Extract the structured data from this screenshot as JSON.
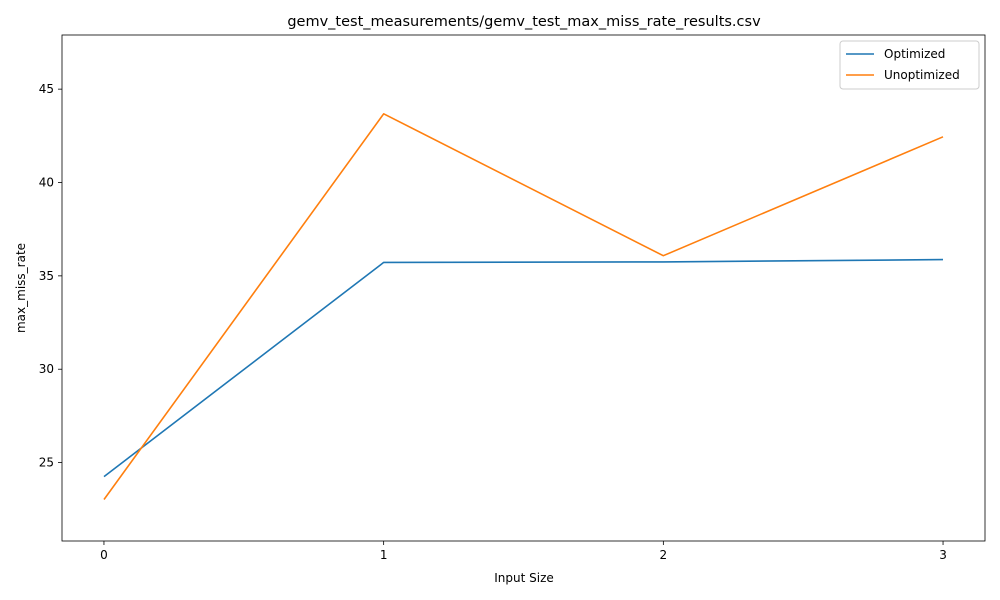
{
  "chart_data": {
    "type": "line",
    "title": "gemv_test_measurements/gemv_test_max_miss_rate_results.csv",
    "xlabel": "Input Size",
    "ylabel": "max_miss_rate",
    "x": [
      0,
      1,
      2,
      3
    ],
    "x_ticks": [
      "0",
      "1",
      "2",
      "3"
    ],
    "xlim": [
      -0.15,
      3.15
    ],
    "ylim": [
      20.8,
      47.9
    ],
    "y_ticks": [
      25,
      30,
      35,
      40,
      45
    ],
    "grid": false,
    "legend_position": "top-right",
    "series": [
      {
        "name": "Optimized",
        "color": "#1f77b4",
        "values": [
          24.25,
          35.72,
          35.75,
          35.87
        ]
      },
      {
        "name": "Unoptimized",
        "color": "#ff7f0e",
        "values": [
          23.02,
          43.68,
          36.08,
          42.45
        ]
      }
    ]
  }
}
